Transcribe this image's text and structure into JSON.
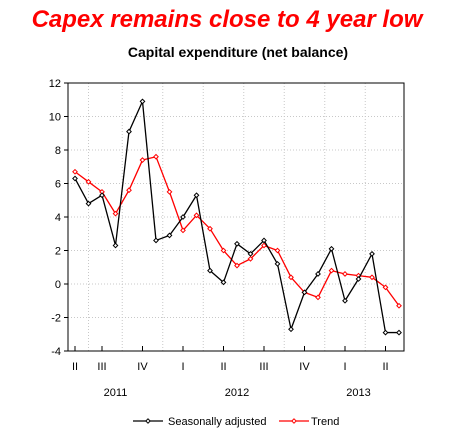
{
  "headline": "Capex remains close to 4 year low",
  "chart_data": {
    "type": "line",
    "title": "Capital expenditure (net balance)",
    "xlabel": "",
    "ylabel": "",
    "ylim": [
      -4,
      12
    ],
    "yticks": [
      -4,
      -2,
      0,
      2,
      4,
      6,
      8,
      10,
      12
    ],
    "grid": true,
    "legend_position": "bottom-center",
    "quarter_labels": [
      {
        "label": "II",
        "index": 0
      },
      {
        "label": "III",
        "index": 2
      },
      {
        "label": "IV",
        "index": 5
      },
      {
        "label": "I",
        "index": 8
      },
      {
        "label": "II",
        "index": 11
      },
      {
        "label": "III",
        "index": 14
      },
      {
        "label": "IV",
        "index": 17
      },
      {
        "label": "I",
        "index": 20
      },
      {
        "label": "II",
        "index": 23
      }
    ],
    "year_labels": [
      {
        "label": "2011",
        "index": 3
      },
      {
        "label": "2012",
        "index": 12
      },
      {
        "label": "2013",
        "index": 21
      }
    ],
    "series": [
      {
        "name": "Seasonally adjusted",
        "color": "#000000",
        "marker": "diamond",
        "values": [
          6.3,
          4.8,
          5.3,
          2.3,
          9.1,
          10.9,
          2.6,
          2.9,
          4.0,
          5.3,
          0.8,
          0.1,
          2.4,
          1.8,
          2.6,
          1.2,
          -2.7,
          -0.5,
          0.6,
          2.1,
          -1.0,
          0.3,
          1.8,
          -2.9,
          -2.9
        ]
      },
      {
        "name": "Trend",
        "color": "#ff0000",
        "marker": "diamond",
        "values": [
          6.7,
          6.1,
          5.5,
          4.2,
          5.6,
          7.4,
          7.6,
          5.5,
          3.2,
          4.1,
          3.3,
          2.0,
          1.1,
          1.5,
          2.3,
          2.0,
          0.4,
          -0.5,
          -0.8,
          0.8,
          0.6,
          0.5,
          0.4,
          -0.2,
          -1.3
        ]
      }
    ]
  }
}
